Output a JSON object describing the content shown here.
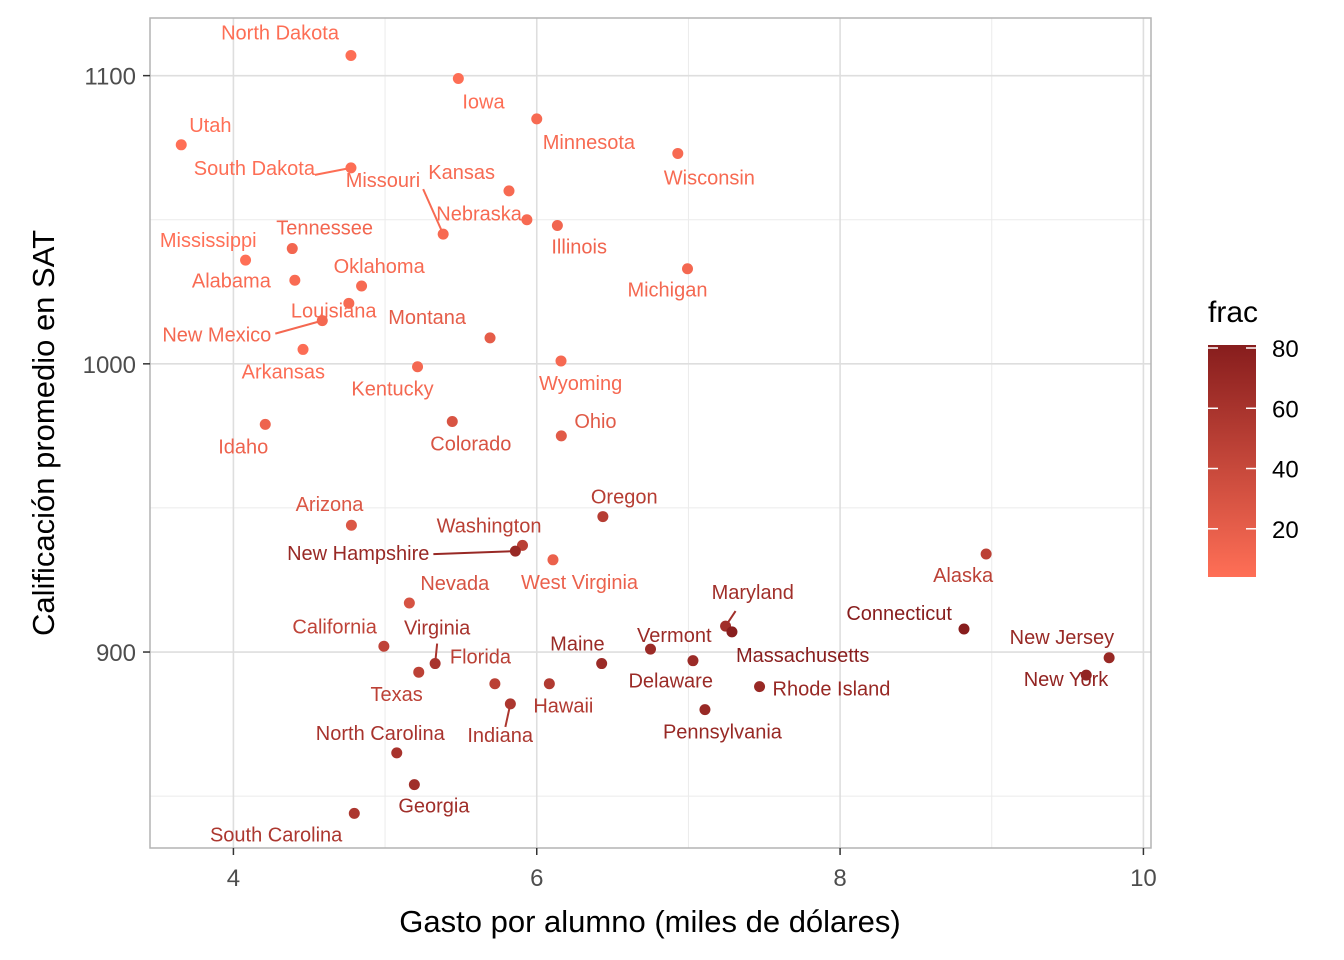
{
  "chart_data": {
    "type": "scatter",
    "xlabel": "Gasto por alumno (miles de dólares)",
    "ylabel": "Calificación promedio en SAT",
    "xlim": [
      3.45,
      10.05
    ],
    "ylim": [
      832,
      1120
    ],
    "x_ticks": [
      4,
      6,
      8,
      10
    ],
    "y_ticks": [
      900,
      1000,
      1100
    ],
    "x_minor": [
      5,
      7,
      9
    ],
    "y_minor": [
      850,
      950,
      1050
    ],
    "grid": true,
    "color_scale": {
      "name": "frac",
      "low_color": "#ff6f56",
      "high_color": "#871d1d",
      "domain": [
        4,
        81
      ],
      "ticks": [
        20,
        40,
        60,
        80
      ],
      "legend_position": "right"
    },
    "points": [
      {
        "state": "North Dakota",
        "x": 4.775,
        "y": 1107,
        "frac": 5
      },
      {
        "state": "Iowa",
        "x": 5.483,
        "y": 1099,
        "frac": 5
      },
      {
        "state": "Minnesota",
        "x": 6.0,
        "y": 1085,
        "frac": 9
      },
      {
        "state": "Utah",
        "x": 3.656,
        "y": 1076,
        "frac": 4
      },
      {
        "state": "South Dakota",
        "x": 4.775,
        "y": 1068,
        "frac": 5
      },
      {
        "state": "Wisconsin",
        "x": 6.93,
        "y": 1073,
        "frac": 9
      },
      {
        "state": "Kansas",
        "x": 5.817,
        "y": 1060,
        "frac": 9
      },
      {
        "state": "Nebraska",
        "x": 5.935,
        "y": 1050,
        "frac": 9
      },
      {
        "state": "Illinois",
        "x": 6.136,
        "y": 1048,
        "frac": 13
      },
      {
        "state": "Missouri",
        "x": 5.383,
        "y": 1045,
        "frac": 9
      },
      {
        "state": "Mississippi",
        "x": 4.08,
        "y": 1036,
        "frac": 4
      },
      {
        "state": "Tennessee",
        "x": 4.388,
        "y": 1040,
        "frac": 12
      },
      {
        "state": "Michigan",
        "x": 6.994,
        "y": 1033,
        "frac": 11
      },
      {
        "state": "Alabama",
        "x": 4.405,
        "y": 1029,
        "frac": 8
      },
      {
        "state": "Oklahoma",
        "x": 4.845,
        "y": 1027,
        "frac": 9
      },
      {
        "state": "Louisiana",
        "x": 4.761,
        "y": 1021,
        "frac": 9
      },
      {
        "state": "New Mexico",
        "x": 4.586,
        "y": 1015,
        "frac": 11
      },
      {
        "state": "Montana",
        "x": 5.692,
        "y": 1009,
        "frac": 21
      },
      {
        "state": "Arkansas",
        "x": 4.459,
        "y": 1005,
        "frac": 6
      },
      {
        "state": "Kentucky",
        "x": 5.214,
        "y": 999,
        "frac": 11
      },
      {
        "state": "Wyoming",
        "x": 6.16,
        "y": 1001,
        "frac": 10
      },
      {
        "state": "Idaho",
        "x": 4.21,
        "y": 979,
        "frac": 15
      },
      {
        "state": "Colorado",
        "x": 5.443,
        "y": 980,
        "frac": 29
      },
      {
        "state": "Ohio",
        "x": 6.162,
        "y": 975,
        "frac": 23
      },
      {
        "state": "Oregon",
        "x": 6.436,
        "y": 947,
        "frac": 51
      },
      {
        "state": "Arizona",
        "x": 4.778,
        "y": 944,
        "frac": 27
      },
      {
        "state": "Washington",
        "x": 5.906,
        "y": 937,
        "frac": 48
      },
      {
        "state": "New Hampshire",
        "x": 5.859,
        "y": 935,
        "frac": 70
      },
      {
        "state": "West Virginia",
        "x": 6.107,
        "y": 932,
        "frac": 17
      },
      {
        "state": "Alaska",
        "x": 8.963,
        "y": 934,
        "frac": 47
      },
      {
        "state": "Nevada",
        "x": 5.16,
        "y": 917,
        "frac": 30
      },
      {
        "state": "Maryland",
        "x": 7.245,
        "y": 909,
        "frac": 64
      },
      {
        "state": "Connecticut",
        "x": 8.817,
        "y": 908,
        "frac": 81
      },
      {
        "state": "Massachusetts",
        "x": 7.287,
        "y": 907,
        "frac": 80
      },
      {
        "state": "California",
        "x": 4.992,
        "y": 902,
        "frac": 45
      },
      {
        "state": "Vermont",
        "x": 6.75,
        "y": 901,
        "frac": 68
      },
      {
        "state": "New Jersey",
        "x": 9.774,
        "y": 898,
        "frac": 70
      },
      {
        "state": "Virginia",
        "x": 5.33,
        "y": 896,
        "frac": 60
      },
      {
        "state": "Maine",
        "x": 6.428,
        "y": 896,
        "frac": 68
      },
      {
        "state": "Delaware",
        "x": 7.03,
        "y": 897,
        "frac": 68
      },
      {
        "state": "Texas",
        "x": 5.222,
        "y": 893,
        "frac": 47
      },
      {
        "state": "New York",
        "x": 9.623,
        "y": 892,
        "frac": 74
      },
      {
        "state": "Florida",
        "x": 5.724,
        "y": 889,
        "frac": 48
      },
      {
        "state": "Hawaii",
        "x": 6.083,
        "y": 889,
        "frac": 54
      },
      {
        "state": "Rhode Island",
        "x": 7.469,
        "y": 888,
        "frac": 70
      },
      {
        "state": "Indiana",
        "x": 5.826,
        "y": 882,
        "frac": 57
      },
      {
        "state": "Pennsylvania",
        "x": 7.109,
        "y": 880,
        "frac": 70
      },
      {
        "state": "North Carolina",
        "x": 5.077,
        "y": 865,
        "frac": 60
      },
      {
        "state": "Georgia",
        "x": 5.193,
        "y": 854,
        "frac": 65
      },
      {
        "state": "South Carolina",
        "x": 4.797,
        "y": 844,
        "frac": 57
      }
    ]
  }
}
